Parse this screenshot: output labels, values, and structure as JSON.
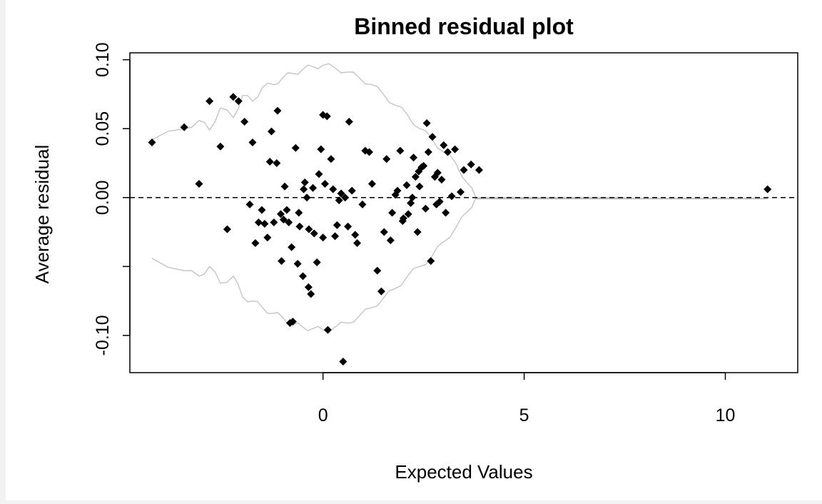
{
  "chart_data": {
    "type": "scatter",
    "title": "Binned residual plot",
    "xlabel": "Expected Values",
    "ylabel": "Average residual",
    "xlim": [
      -4.8,
      11.8
    ],
    "ylim": [
      -0.127,
      0.105
    ],
    "x_ticks": [
      0,
      5,
      10
    ],
    "y_ticks": [
      -0.1,
      -0.05,
      0.0,
      0.05,
      0.1
    ],
    "x_tick_labels": [
      "0",
      "5",
      "10"
    ],
    "y_tick_labels": [
      "-0.10",
      "",
      "0.00",
      "0.05",
      "0.10"
    ],
    "reference_line": {
      "y": 0,
      "style": "dashed",
      "color": "#000000"
    },
    "colors": {
      "points": "#000000",
      "band": "#bdbdbd",
      "background": "#ffffff"
    },
    "grid": false,
    "series": [
      {
        "points": [
          [
            -4.25,
            0.04
          ],
          [
            -3.45,
            0.051
          ],
          [
            -3.08,
            0.01
          ],
          [
            -2.82,
            0.07
          ],
          [
            -2.55,
            0.037
          ],
          [
            -2.38,
            -0.023
          ],
          [
            -2.23,
            0.073
          ],
          [
            -2.1,
            0.07
          ],
          [
            -1.95,
            0.055
          ],
          [
            -1.82,
            -0.005
          ],
          [
            -1.75,
            0.04
          ],
          [
            -1.68,
            -0.033
          ],
          [
            -1.6,
            -0.018
          ],
          [
            -1.52,
            -0.009
          ],
          [
            -1.45,
            -0.019
          ],
          [
            -1.38,
            -0.029
          ],
          [
            -1.32,
            0.026
          ],
          [
            -1.28,
            0.048
          ],
          [
            -1.22,
            -0.018
          ],
          [
            -1.15,
            0.025
          ],
          [
            -1.13,
            0.063
          ],
          [
            -1.05,
            -0.012
          ],
          [
            -1.03,
            -0.046
          ],
          [
            -0.98,
            -0.016
          ],
          [
            -0.95,
            0.008
          ],
          [
            -0.9,
            -0.009
          ],
          [
            -0.85,
            -0.018
          ],
          [
            -0.82,
            -0.091
          ],
          [
            -0.78,
            -0.036
          ],
          [
            -0.75,
            -0.09
          ],
          [
            -0.68,
            0.036
          ],
          [
            -0.63,
            -0.048
          ],
          [
            -0.6,
            -0.011
          ],
          [
            -0.58,
            -0.021
          ],
          [
            -0.5,
            -0.057
          ],
          [
            -0.48,
            0.006
          ],
          [
            -0.45,
            0.011
          ],
          [
            -0.4,
            0.0
          ],
          [
            -0.36,
            -0.065
          ],
          [
            -0.35,
            -0.023
          ],
          [
            -0.3,
            -0.07
          ],
          [
            -0.25,
            0.007
          ],
          [
            -0.22,
            -0.026
          ],
          [
            -0.15,
            -0.047
          ],
          [
            -0.1,
            0.017
          ],
          [
            -0.05,
            0.035
          ],
          [
            0.0,
            0.06
          ],
          [
            0.0,
            -0.029
          ],
          [
            0.05,
            0.01
          ],
          [
            0.1,
            0.059
          ],
          [
            0.12,
            -0.096
          ],
          [
            0.2,
            0.028
          ],
          [
            0.25,
            0.006
          ],
          [
            0.3,
            -0.028
          ],
          [
            0.35,
            -0.02
          ],
          [
            0.4,
            -0.002
          ],
          [
            0.45,
            0.003
          ],
          [
            0.5,
            -0.119
          ],
          [
            0.55,
            0.0
          ],
          [
            0.62,
            -0.021
          ],
          [
            0.65,
            0.055
          ],
          [
            0.72,
            0.005
          ],
          [
            0.8,
            -0.027
          ],
          [
            0.85,
            -0.033
          ],
          [
            0.98,
            -0.005
          ],
          [
            1.05,
            0.034
          ],
          [
            1.15,
            0.033
          ],
          [
            1.22,
            0.01
          ],
          [
            1.35,
            -0.053
          ],
          [
            1.45,
            -0.068
          ],
          [
            1.52,
            -0.025
          ],
          [
            1.58,
            0.028
          ],
          [
            1.68,
            -0.031
          ],
          [
            1.72,
            -0.011
          ],
          [
            1.8,
            0.002
          ],
          [
            1.85,
            0.005
          ],
          [
            1.92,
            0.034
          ],
          [
            1.98,
            -0.017
          ],
          [
            2.0,
            -0.015
          ],
          [
            2.08,
            0.009
          ],
          [
            2.12,
            -0.012
          ],
          [
            2.18,
            -0.004
          ],
          [
            2.22,
            0.0
          ],
          [
            2.25,
            0.029
          ],
          [
            2.3,
            0.015
          ],
          [
            2.35,
            -0.025
          ],
          [
            2.38,
            0.019
          ],
          [
            2.4,
            0.008
          ],
          [
            2.45,
            0.022
          ],
          [
            2.5,
            0.023
          ],
          [
            2.55,
            -0.008
          ],
          [
            2.58,
            0.054
          ],
          [
            2.62,
            0.033
          ],
          [
            2.68,
            -0.046
          ],
          [
            2.72,
            0.044
          ],
          [
            2.78,
            0.015
          ],
          [
            2.82,
            -0.005
          ],
          [
            2.85,
            0.018
          ],
          [
            2.9,
            -0.003
          ],
          [
            2.95,
            0.013
          ],
          [
            3.0,
            0.038
          ],
          [
            3.05,
            -0.011
          ],
          [
            3.1,
            0.033
          ],
          [
            3.2,
            0.001
          ],
          [
            3.28,
            0.035
          ],
          [
            3.42,
            0.004
          ],
          [
            3.5,
            0.02
          ],
          [
            3.68,
            0.024
          ],
          [
            3.88,
            0.02
          ],
          [
            11.05,
            0.006
          ]
        ]
      }
    ],
    "band_upper": [
      [
        -4.25,
        0.042
      ],
      [
        -3.45,
        0.05
      ],
      [
        -3.08,
        0.056
      ],
      [
        -2.82,
        0.049
      ],
      [
        -2.55,
        0.065
      ],
      [
        -2.23,
        0.058
      ],
      [
        -2.0,
        0.074
      ],
      [
        -1.75,
        0.07
      ],
      [
        -1.5,
        0.08
      ],
      [
        -1.25,
        0.082
      ],
      [
        -1.0,
        0.087
      ],
      [
        -0.75,
        0.09
      ],
      [
        -0.5,
        0.093
      ],
      [
        -0.25,
        0.095
      ],
      [
        0.0,
        0.096
      ],
      [
        0.3,
        0.094
      ],
      [
        0.6,
        0.091
      ],
      [
        0.9,
        0.087
      ],
      [
        1.2,
        0.082
      ],
      [
        1.5,
        0.075
      ],
      [
        1.8,
        0.067
      ],
      [
        2.1,
        0.06
      ],
      [
        2.4,
        0.05
      ],
      [
        2.7,
        0.043
      ],
      [
        3.0,
        0.033
      ],
      [
        3.3,
        0.025
      ],
      [
        3.6,
        0.01
      ],
      [
        3.8,
        0.0
      ],
      [
        7.5,
        0.0
      ]
    ],
    "band_lower": [
      [
        -4.25,
        -0.044
      ],
      [
        -3.45,
        -0.053
      ],
      [
        -3.08,
        -0.057
      ],
      [
        -2.82,
        -0.05
      ],
      [
        -2.55,
        -0.062
      ],
      [
        -2.23,
        -0.057
      ],
      [
        -2.0,
        -0.072
      ],
      [
        -1.75,
        -0.075
      ],
      [
        -1.5,
        -0.08
      ],
      [
        -1.25,
        -0.084
      ],
      [
        -1.0,
        -0.087
      ],
      [
        -0.75,
        -0.092
      ],
      [
        -0.5,
        -0.094
      ],
      [
        -0.25,
        -0.095
      ],
      [
        0.0,
        -0.096
      ],
      [
        0.3,
        -0.094
      ],
      [
        0.6,
        -0.091
      ],
      [
        0.9,
        -0.086
      ],
      [
        1.2,
        -0.08
      ],
      [
        1.5,
        -0.073
      ],
      [
        1.8,
        -0.066
      ],
      [
        2.1,
        -0.057
      ],
      [
        2.4,
        -0.05
      ],
      [
        2.7,
        -0.043
      ],
      [
        3.0,
        -0.032
      ],
      [
        3.3,
        -0.022
      ],
      [
        3.6,
        -0.01
      ],
      [
        3.8,
        0.0
      ],
      [
        7.5,
        0.0
      ]
    ]
  }
}
